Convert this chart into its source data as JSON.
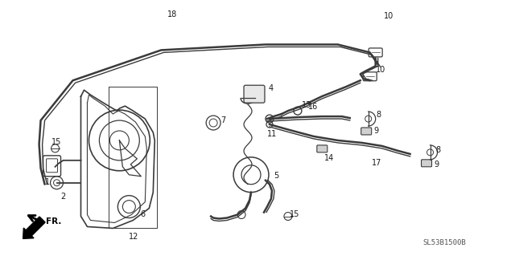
{
  "bg_color": "#ffffff",
  "diagram_code": "SL53B1500B",
  "line_color": "#3a3a3a",
  "text_color": "#1a1a1a",
  "font_size": 7.0
}
